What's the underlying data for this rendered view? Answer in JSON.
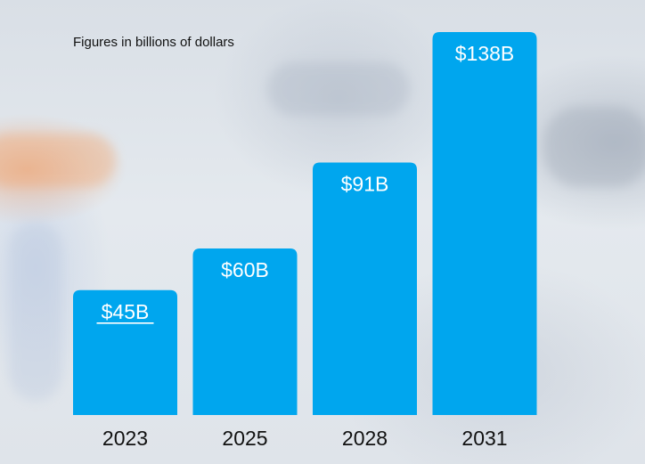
{
  "note": "Figures in billions of dollars",
  "colors": {
    "bar": "#00a6ee",
    "bar_label": "#ffffff",
    "category_label": "#111111"
  },
  "chart_data": {
    "type": "bar",
    "categories": [
      "2023",
      "2025",
      "2028",
      "2031"
    ],
    "values": [
      45,
      60,
      91,
      138
    ],
    "data_labels": [
      "$45B",
      "$60B",
      "$91B",
      "$138B"
    ],
    "title": "",
    "xlabel": "",
    "ylabel": "",
    "ylim": [
      0,
      150
    ],
    "grid": false,
    "legend": "none"
  }
}
